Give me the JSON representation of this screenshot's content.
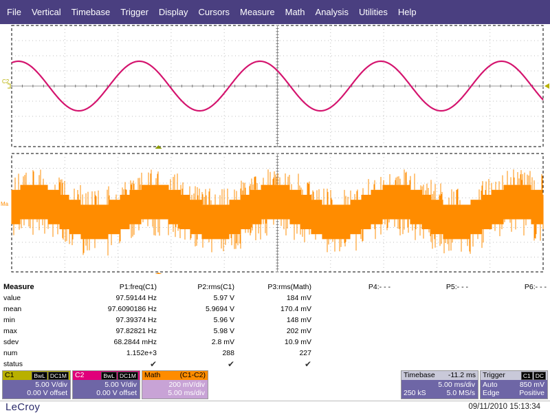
{
  "menu": [
    "File",
    "Vertical",
    "Timebase",
    "Trigger",
    "Display",
    "Cursors",
    "Measure",
    "Math",
    "Analysis",
    "Utilities",
    "Help"
  ],
  "grid1": {
    "channel_marker": "C2",
    "trace_color": "#d4146e",
    "cycles": 4.4
  },
  "grid2": {
    "channel_marker": "Ma",
    "trace_color": "#ff8c00"
  },
  "measure": {
    "title": "Measure",
    "headers": [
      "P1:freq(C1)",
      "P2:rms(C1)",
      "P3:rms(Math)",
      "P4:- - -",
      "P5:- - -",
      "P6:- - -"
    ],
    "rows": [
      {
        "label": "value",
        "p1": "97.59144 Hz",
        "p2": "5.97 V",
        "p3": "184 mV"
      },
      {
        "label": "mean",
        "p1": "97.6090186 Hz",
        "p2": "5.9694 V",
        "p3": "170.4 mV"
      },
      {
        "label": "min",
        "p1": "97.39374 Hz",
        "p2": "5.96 V",
        "p3": "148 mV"
      },
      {
        "label": "max",
        "p1": "97.82821 Hz",
        "p2": "5.98 V",
        "p3": "202 mV"
      },
      {
        "label": "sdev",
        "p1": "68.2844 mHz",
        "p2": "2.8 mV",
        "p3": "10.9 mV"
      },
      {
        "label": "num",
        "p1": "1.152e+3",
        "p2": "288",
        "p3": "227"
      },
      {
        "label": "status",
        "p1": "✔",
        "p2": "✔",
        "p3": "✔"
      }
    ]
  },
  "descriptors": {
    "c1": {
      "name": "C1",
      "tag1": "BwL",
      "tag2": "DC1M",
      "vdiv": "5.00 V/div",
      "offset": "0.00 V offset",
      "color": "#b8b000"
    },
    "c2": {
      "name": "C2",
      "tag1": "BwL",
      "tag2": "DC1M",
      "vdiv": "5.00 V/div",
      "offset": "0.00 V offset",
      "color": "#e0007a"
    },
    "math": {
      "name": "Math",
      "func": "(C1-C2)",
      "vdiv": "200 mV/div",
      "hdiv": "5.00 ms/div",
      "color": "#ff8c00"
    },
    "timebase": {
      "name": "Timebase",
      "delay": "-11.2 ms",
      "hdiv": "5.00 ms/div",
      "samples": "250 kS",
      "rate": "5.0 MS/s"
    },
    "trigger": {
      "name": "Trigger",
      "source": "C1",
      "coupling": "DC",
      "mode": "Auto",
      "level": "850 mV",
      "type": "Edge",
      "slope": "Positive"
    }
  },
  "footer": {
    "brand": "LeCroy",
    "datetime": "09/11/2010 15:13:34"
  }
}
